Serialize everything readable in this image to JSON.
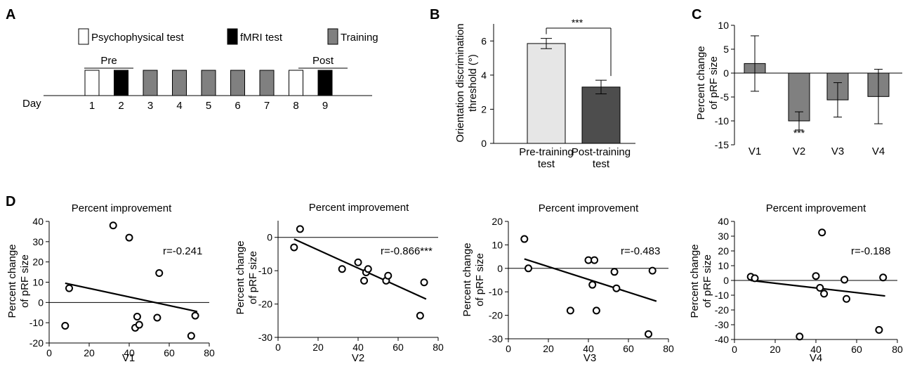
{
  "panel_labels": [
    "A",
    "B",
    "C",
    "D"
  ],
  "timeline": {
    "legend": [
      {
        "label": "Psychophysical test",
        "color": "#ffffff"
      },
      {
        "label": "fMRI test",
        "color": "#000000"
      },
      {
        "label": "Training",
        "color": "#808080"
      }
    ],
    "day_label": "Day",
    "pre_label": "Pre",
    "post_label": "Post",
    "days": [
      {
        "day": "1",
        "type": "Psychophysical test"
      },
      {
        "day": "2",
        "type": "fMRI test"
      },
      {
        "day": "3",
        "type": "Training"
      },
      {
        "day": "4",
        "type": "Training"
      },
      {
        "day": "5",
        "type": "Training"
      },
      {
        "day": "6",
        "type": "Training"
      },
      {
        "day": "7",
        "type": "Training"
      },
      {
        "day": "8",
        "type": "Psychophysical test"
      },
      {
        "day": "9",
        "type": "fMRI test"
      }
    ]
  },
  "chart_data": [
    {
      "id": "B",
      "type": "bar",
      "ylabel": "Orientation discrimination threshold (°)",
      "ylabel_lines": [
        "Orientation discrimination",
        "threshold (°)"
      ],
      "categories": [
        "Pre-training test",
        "Post-training test"
      ],
      "category_lines": [
        [
          "Pre-training",
          "test"
        ],
        [
          "Post-training",
          "test"
        ]
      ],
      "values": [
        5.85,
        3.3
      ],
      "errors": [
        0.3,
        0.4
      ],
      "colors": [
        "#e6e6e6",
        "#4d4d4d"
      ],
      "ylim": [
        0,
        7
      ],
      "yticks": [
        0,
        2,
        4,
        6
      ],
      "annotation": "***"
    },
    {
      "id": "C",
      "type": "bar",
      "ylabel": "Percent change of pRF size",
      "ylabel_lines": [
        "Percent change",
        "of pRF size"
      ],
      "categories": [
        "V1",
        "V2",
        "V3",
        "V4"
      ],
      "values": [
        2.0,
        -10.0,
        -5.6,
        -4.9
      ],
      "errors": [
        5.8,
        1.9,
        3.6,
        5.7
      ],
      "color": "#808080",
      "ylim": [
        -15,
        10
      ],
      "yticks": [
        -15,
        -10,
        -5,
        0,
        5,
        10
      ],
      "ytick_labels": [
        "-15",
        "-10",
        "-5",
        "0",
        "5",
        "10"
      ],
      "annotation": {
        "category": "V2",
        "text": "***"
      }
    },
    {
      "id": "D-V1",
      "type": "scatter",
      "title": "Percent improvement",
      "xlabel": "V1",
      "ylabel_lines": [
        "Percent change",
        "of pRF size"
      ],
      "xlim": [
        0,
        80
      ],
      "xticks": [
        0,
        20,
        40,
        60,
        80
      ],
      "ylim": [
        -20,
        40
      ],
      "yticks": [
        -20,
        -10,
        0,
        10,
        20,
        30,
        40
      ],
      "ytick_labels": [
        "-20",
        "-10",
        "0",
        "10",
        "20",
        "30",
        "40"
      ],
      "x": [
        8,
        10,
        32,
        40,
        43,
        44,
        45,
        54,
        55,
        71,
        73
      ],
      "y": [
        -11.5,
        7,
        38,
        32,
        -12.5,
        -7,
        -11,
        -7.5,
        14.5,
        -16.5,
        -6.5
      ],
      "fit": {
        "x": [
          8,
          74
        ],
        "y": [
          9.5,
          -4.5
        ]
      },
      "r_text": "r=-0.241"
    },
    {
      "id": "D-V2",
      "type": "scatter",
      "title": "Percent improvement",
      "xlabel": "V2",
      "ylabel_lines": [
        "Percent change",
        "of pRF size"
      ],
      "xlim": [
        0,
        80
      ],
      "xticks": [
        0,
        20,
        40,
        60,
        80
      ],
      "ylim": [
        -30,
        5
      ],
      "yticks": [
        -30,
        -20,
        -10,
        0
      ],
      "ytick_labels": [
        "-30",
        "-20",
        "-10",
        "0"
      ],
      "x": [
        8,
        11,
        32,
        40,
        43,
        44,
        45,
        54,
        55,
        71,
        73
      ],
      "y": [
        -3,
        2.5,
        -9.5,
        -7.5,
        -13,
        -10.5,
        -9.5,
        -13,
        -11.5,
        -23.5,
        -13.5
      ],
      "fit": {
        "x": [
          8,
          74
        ],
        "y": [
          -0.5,
          -18.5
        ]
      },
      "r_text": "r=-0.866***"
    },
    {
      "id": "D-V3",
      "type": "scatter",
      "title": "Percent improvement",
      "xlabel": "V3",
      "ylabel_lines": [
        "Percent change",
        "of pRF size"
      ],
      "xlim": [
        0,
        80
      ],
      "xticks": [
        0,
        20,
        40,
        60,
        80
      ],
      "ylim": [
        -30,
        20
      ],
      "yticks": [
        -30,
        -20,
        -10,
        0,
        10,
        20
      ],
      "ytick_labels": [
        "-30",
        "-20",
        "-10",
        "0",
        "10",
        "20"
      ],
      "x": [
        8,
        10,
        31,
        40,
        42,
        43,
        44,
        53,
        54,
        70,
        72
      ],
      "y": [
        12.5,
        0,
        -18,
        3.5,
        -7,
        3.5,
        -18,
        -1.5,
        -8.5,
        -28,
        -1
      ],
      "fit": {
        "x": [
          8,
          74
        ],
        "y": [
          4,
          -14
        ]
      },
      "r_text": "r=-0.483"
    },
    {
      "id": "D-V4",
      "type": "scatter",
      "title": "Percent improvement",
      "xlabel": "V4",
      "ylabel_lines": [
        "Percent change",
        "of pRF size"
      ],
      "xlim": [
        0,
        80
      ],
      "xticks": [
        0,
        20,
        40,
        60,
        80
      ],
      "ylim": [
        -40,
        40
      ],
      "yticks": [
        -40,
        -30,
        -20,
        -10,
        0,
        10,
        20,
        30,
        40
      ],
      "ytick_labels": [
        "-40",
        "-30",
        "-20",
        "-10",
        "0",
        "10",
        "20",
        "30",
        "40"
      ],
      "x": [
        8,
        10,
        32,
        40,
        42,
        43,
        44,
        54,
        55,
        71,
        73
      ],
      "y": [
        2.5,
        1.5,
        -38,
        3,
        -5,
        32.5,
        -9,
        0.5,
        -12.5,
        -33.5,
        2
      ],
      "fit": {
        "x": [
          8,
          74
        ],
        "y": [
          0,
          -10.5
        ]
      },
      "r_text": "r=-0.188"
    }
  ]
}
